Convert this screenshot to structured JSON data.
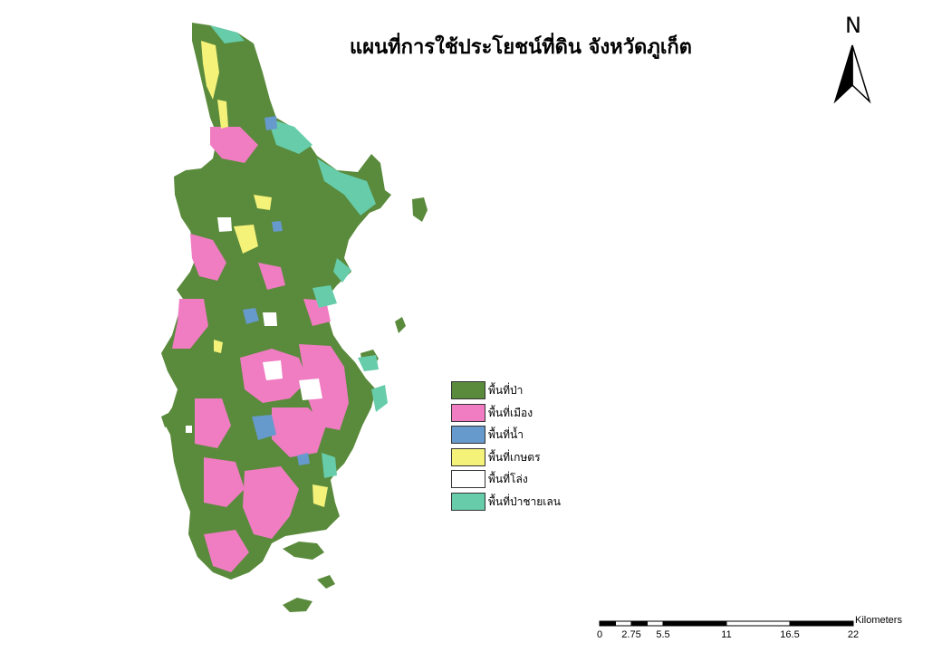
{
  "title": "แผนที่การใช้ประโยชน์ที่ดิน จังหวัดภูเก็ต",
  "north_arrow": {
    "label": "N"
  },
  "legend": {
    "items": [
      {
        "label": "พื้นที่ป่า",
        "color": "#5a8a3c",
        "icon": "forest-swatch"
      },
      {
        "label": "พื้นที่เมือง",
        "color": "#f07cc2",
        "icon": "urban-swatch"
      },
      {
        "label": "พื้นที่น้ำ",
        "color": "#6699cc",
        "icon": "water-swatch"
      },
      {
        "label": "พื้นที่เกษตร",
        "color": "#f5f27a",
        "icon": "agriculture-swatch"
      },
      {
        "label": "พื้นที่โล่ง",
        "color": "#ffffff",
        "icon": "open-area-swatch"
      },
      {
        "label": "พื้นที่ป่าชายเลน",
        "color": "#66ccaa",
        "icon": "mangrove-swatch"
      }
    ]
  },
  "scale_bar": {
    "units": "Kilometers",
    "ticks": [
      "0",
      "2.75",
      "5.5",
      "11",
      "16.5",
      "22"
    ],
    "tick_values": [
      0,
      2.75,
      5.5,
      11,
      16.5,
      22
    ]
  }
}
